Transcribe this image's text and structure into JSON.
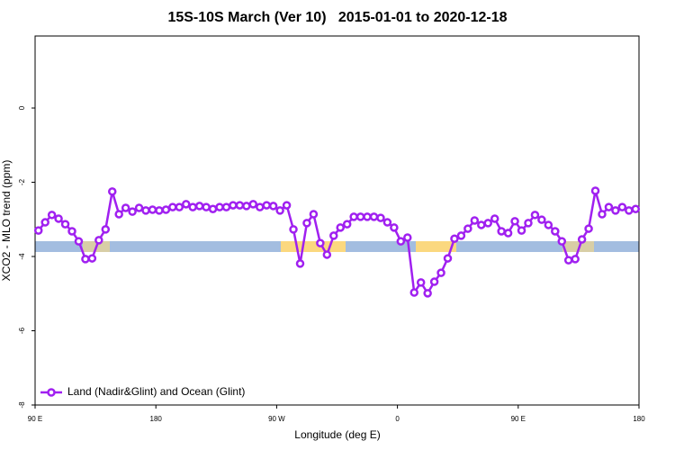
{
  "chart_data": {
    "type": "line",
    "title": "15S-10S March (Ver 10)   2015-01-01 to 2020-12-18",
    "x_label": "Longitude (deg E)",
    "y_label": "XCO2 - MLO trend (ppm)",
    "xlim": [
      90,
      540
    ],
    "xticks": [
      {
        "value": 90,
        "label": "90 E"
      },
      180,
      {
        "value": 270,
        "label": "90 W"
      },
      {
        "value": 360,
        "label": "0"
      },
      {
        "value": 450,
        "label": "90 E"
      },
      {
        "value": 540,
        "label": "180"
      }
    ],
    "ylim": [
      -8,
      1.94
    ],
    "yticks": [
      0,
      -2,
      -4,
      -6,
      -8
    ],
    "legend": "bottom-left",
    "x": [
      92.5,
      97.5,
      102.5,
      107.5,
      112.5,
      117.5,
      122.5,
      127.5,
      132.5,
      137.5,
      142.5,
      147.5,
      152.5,
      157.5,
      162.5,
      167.5,
      172.5,
      177.5,
      182.5,
      187.5,
      192.5,
      197.5,
      202.5,
      207.5,
      212.5,
      217.5,
      222.5,
      227.5,
      232.5,
      237.5,
      242.5,
      247.5,
      252.5,
      257.5,
      262.5,
      267.5,
      272.5,
      277.5,
      282.5,
      287.5,
      292.5,
      297.5,
      302.5,
      307.5,
      312.5,
      317.5,
      322.5,
      327.5,
      332.5,
      337.5,
      342.5,
      347.5,
      352.5,
      357.5,
      362.5,
      367.5,
      372.5,
      377.5,
      382.5,
      387.5,
      392.5,
      397.5,
      402.5,
      407.5,
      412.5,
      417.5,
      422.5,
      427.5,
      432.5,
      437.5,
      442.5,
      447.5,
      452.5,
      457.5,
      462.5,
      467.5,
      472.5,
      477.5,
      482.5,
      487.5,
      492.5,
      497.5,
      502.5,
      507.5,
      512.5,
      517.5,
      522.5,
      527.5,
      532.5,
      537.5
    ],
    "series": [
      {
        "name": "Land (Nadir&Glint) and Ocean (Glint)",
        "color": "#a020f0",
        "values": [
          -3.3,
          -3.08,
          -2.88,
          -2.98,
          -3.13,
          -3.32,
          -3.59,
          -4.07,
          -4.05,
          -3.56,
          -3.27,
          -2.25,
          -2.86,
          -2.69,
          -2.79,
          -2.69,
          -2.76,
          -2.74,
          -2.76,
          -2.74,
          -2.67,
          -2.67,
          -2.59,
          -2.67,
          -2.64,
          -2.67,
          -2.72,
          -2.67,
          -2.67,
          -2.62,
          -2.62,
          -2.64,
          -2.59,
          -2.67,
          -2.62,
          -2.64,
          -2.76,
          -2.62,
          -3.27,
          -4.19,
          -3.1,
          -2.86,
          -3.64,
          -3.95,
          -3.44,
          -3.22,
          -3.13,
          -2.93,
          -2.93,
          -2.93,
          -2.93,
          -2.96,
          -3.08,
          -3.22,
          -3.59,
          -3.49,
          -4.97,
          -4.7,
          -4.99,
          -4.68,
          -4.44,
          -4.05,
          -3.52,
          -3.44,
          -3.25,
          -3.03,
          -3.15,
          -3.1,
          -2.98,
          -3.32,
          -3.37,
          -3.05,
          -3.3,
          -3.1,
          -2.88,
          -3.01,
          -3.15,
          -3.32,
          -3.59,
          -4.1,
          -4.07,
          -3.54,
          -3.25,
          -2.23,
          -2.86,
          -2.67,
          -2.76,
          -2.67,
          -2.76,
          -2.72
        ]
      }
    ]
  }
}
